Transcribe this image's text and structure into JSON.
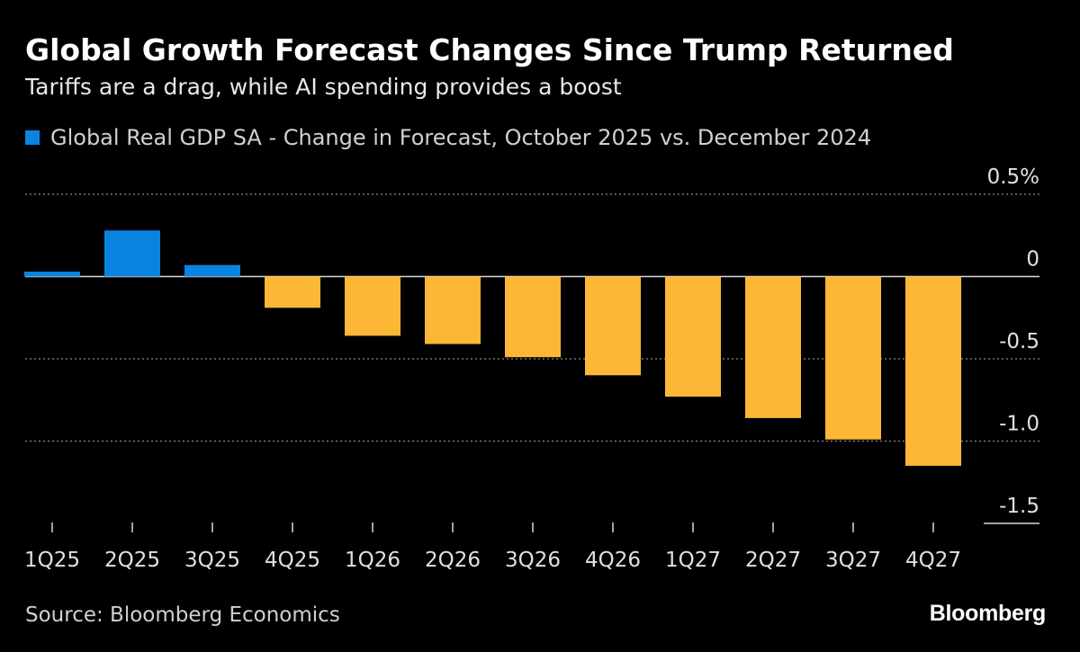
{
  "title": "Global Growth Forecast Changes Since Trump Returned",
  "subtitle": "Tariffs are a drag, while AI spending provides a boost",
  "source": "Source: Bloomberg Economics",
  "brand": "Bloomberg",
  "colors": {
    "background": "#000000",
    "positive": "#0a84e0",
    "negative": "#fbb735",
    "grid": "#8a8a8a",
    "text": "#ffffff",
    "muted": "#d0d0d0"
  },
  "chart_data": {
    "type": "bar",
    "title": "Global Growth Forecast Changes Since Trump Returned",
    "subtitle": "Tariffs are a drag, while AI spending provides a boost",
    "legend": [
      {
        "label": "Global Real GDP SA - Change in Forecast, October 2025 vs. December 2024",
        "color": "#0a84e0"
      }
    ],
    "legend_position": "top-left",
    "categories": [
      "1Q25",
      "2Q25",
      "3Q25",
      "4Q25",
      "1Q26",
      "2Q26",
      "3Q26",
      "4Q26",
      "1Q27",
      "2Q27",
      "3Q27",
      "4Q27"
    ],
    "values": [
      0.03,
      0.28,
      0.07,
      -0.19,
      -0.36,
      -0.41,
      -0.49,
      -0.6,
      -0.73,
      -0.86,
      -0.99,
      -1.15
    ],
    "xlabel": "",
    "ylabel": "",
    "ylim": [
      -1.5,
      0.5
    ],
    "yticks": [
      {
        "value": 0.5,
        "label": "0.5%"
      },
      {
        "value": 0,
        "label": "0"
      },
      {
        "value": -0.5,
        "label": "-0.5"
      },
      {
        "value": -1.0,
        "label": "-1.0"
      },
      {
        "value": -1.5,
        "label": "-1.5"
      }
    ],
    "y_axis_position": "right",
    "grid": true
  }
}
